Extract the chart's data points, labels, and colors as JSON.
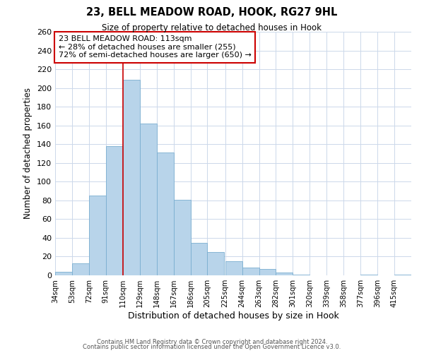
{
  "title": "23, BELL MEADOW ROAD, HOOK, RG27 9HL",
  "subtitle": "Size of property relative to detached houses in Hook",
  "xlabel": "Distribution of detached houses by size in Hook",
  "ylabel": "Number of detached properties",
  "bar_color": "#b8d4ea",
  "bar_edge_color": "#7aaed0",
  "vline_x_index": 4,
  "vline_color": "#cc0000",
  "categories": [
    "34sqm",
    "53sqm",
    "72sqm",
    "91sqm",
    "110sqm",
    "129sqm",
    "148sqm",
    "167sqm",
    "186sqm",
    "205sqm",
    "225sqm",
    "244sqm",
    "263sqm",
    "282sqm",
    "301sqm",
    "320sqm",
    "339sqm",
    "358sqm",
    "377sqm",
    "396sqm",
    "415sqm"
  ],
  "bin_left": [
    34,
    53,
    72,
    91,
    110,
    129,
    148,
    167,
    186,
    205,
    225,
    244,
    263,
    282,
    301,
    320,
    339,
    358,
    377,
    396,
    415
  ],
  "bin_width": 19,
  "values": [
    4,
    13,
    85,
    138,
    209,
    162,
    131,
    81,
    35,
    25,
    15,
    8,
    7,
    3,
    1,
    0,
    0,
    0,
    1,
    0,
    1
  ],
  "ylim": [
    0,
    260
  ],
  "yticks": [
    0,
    20,
    40,
    60,
    80,
    100,
    120,
    140,
    160,
    180,
    200,
    220,
    240,
    260
  ],
  "annotation_text": "23 BELL MEADOW ROAD: 113sqm\n← 28% of detached houses are smaller (255)\n72% of semi-detached houses are larger (650) →",
  "annotation_box_color": "white",
  "annotation_box_edge": "#cc0000",
  "footer1": "Contains HM Land Registry data © Crown copyright and database right 2024.",
  "footer2": "Contains public sector information licensed under the Open Government Licence v3.0.",
  "bg_color": "white",
  "grid_color": "#ccd8ea"
}
